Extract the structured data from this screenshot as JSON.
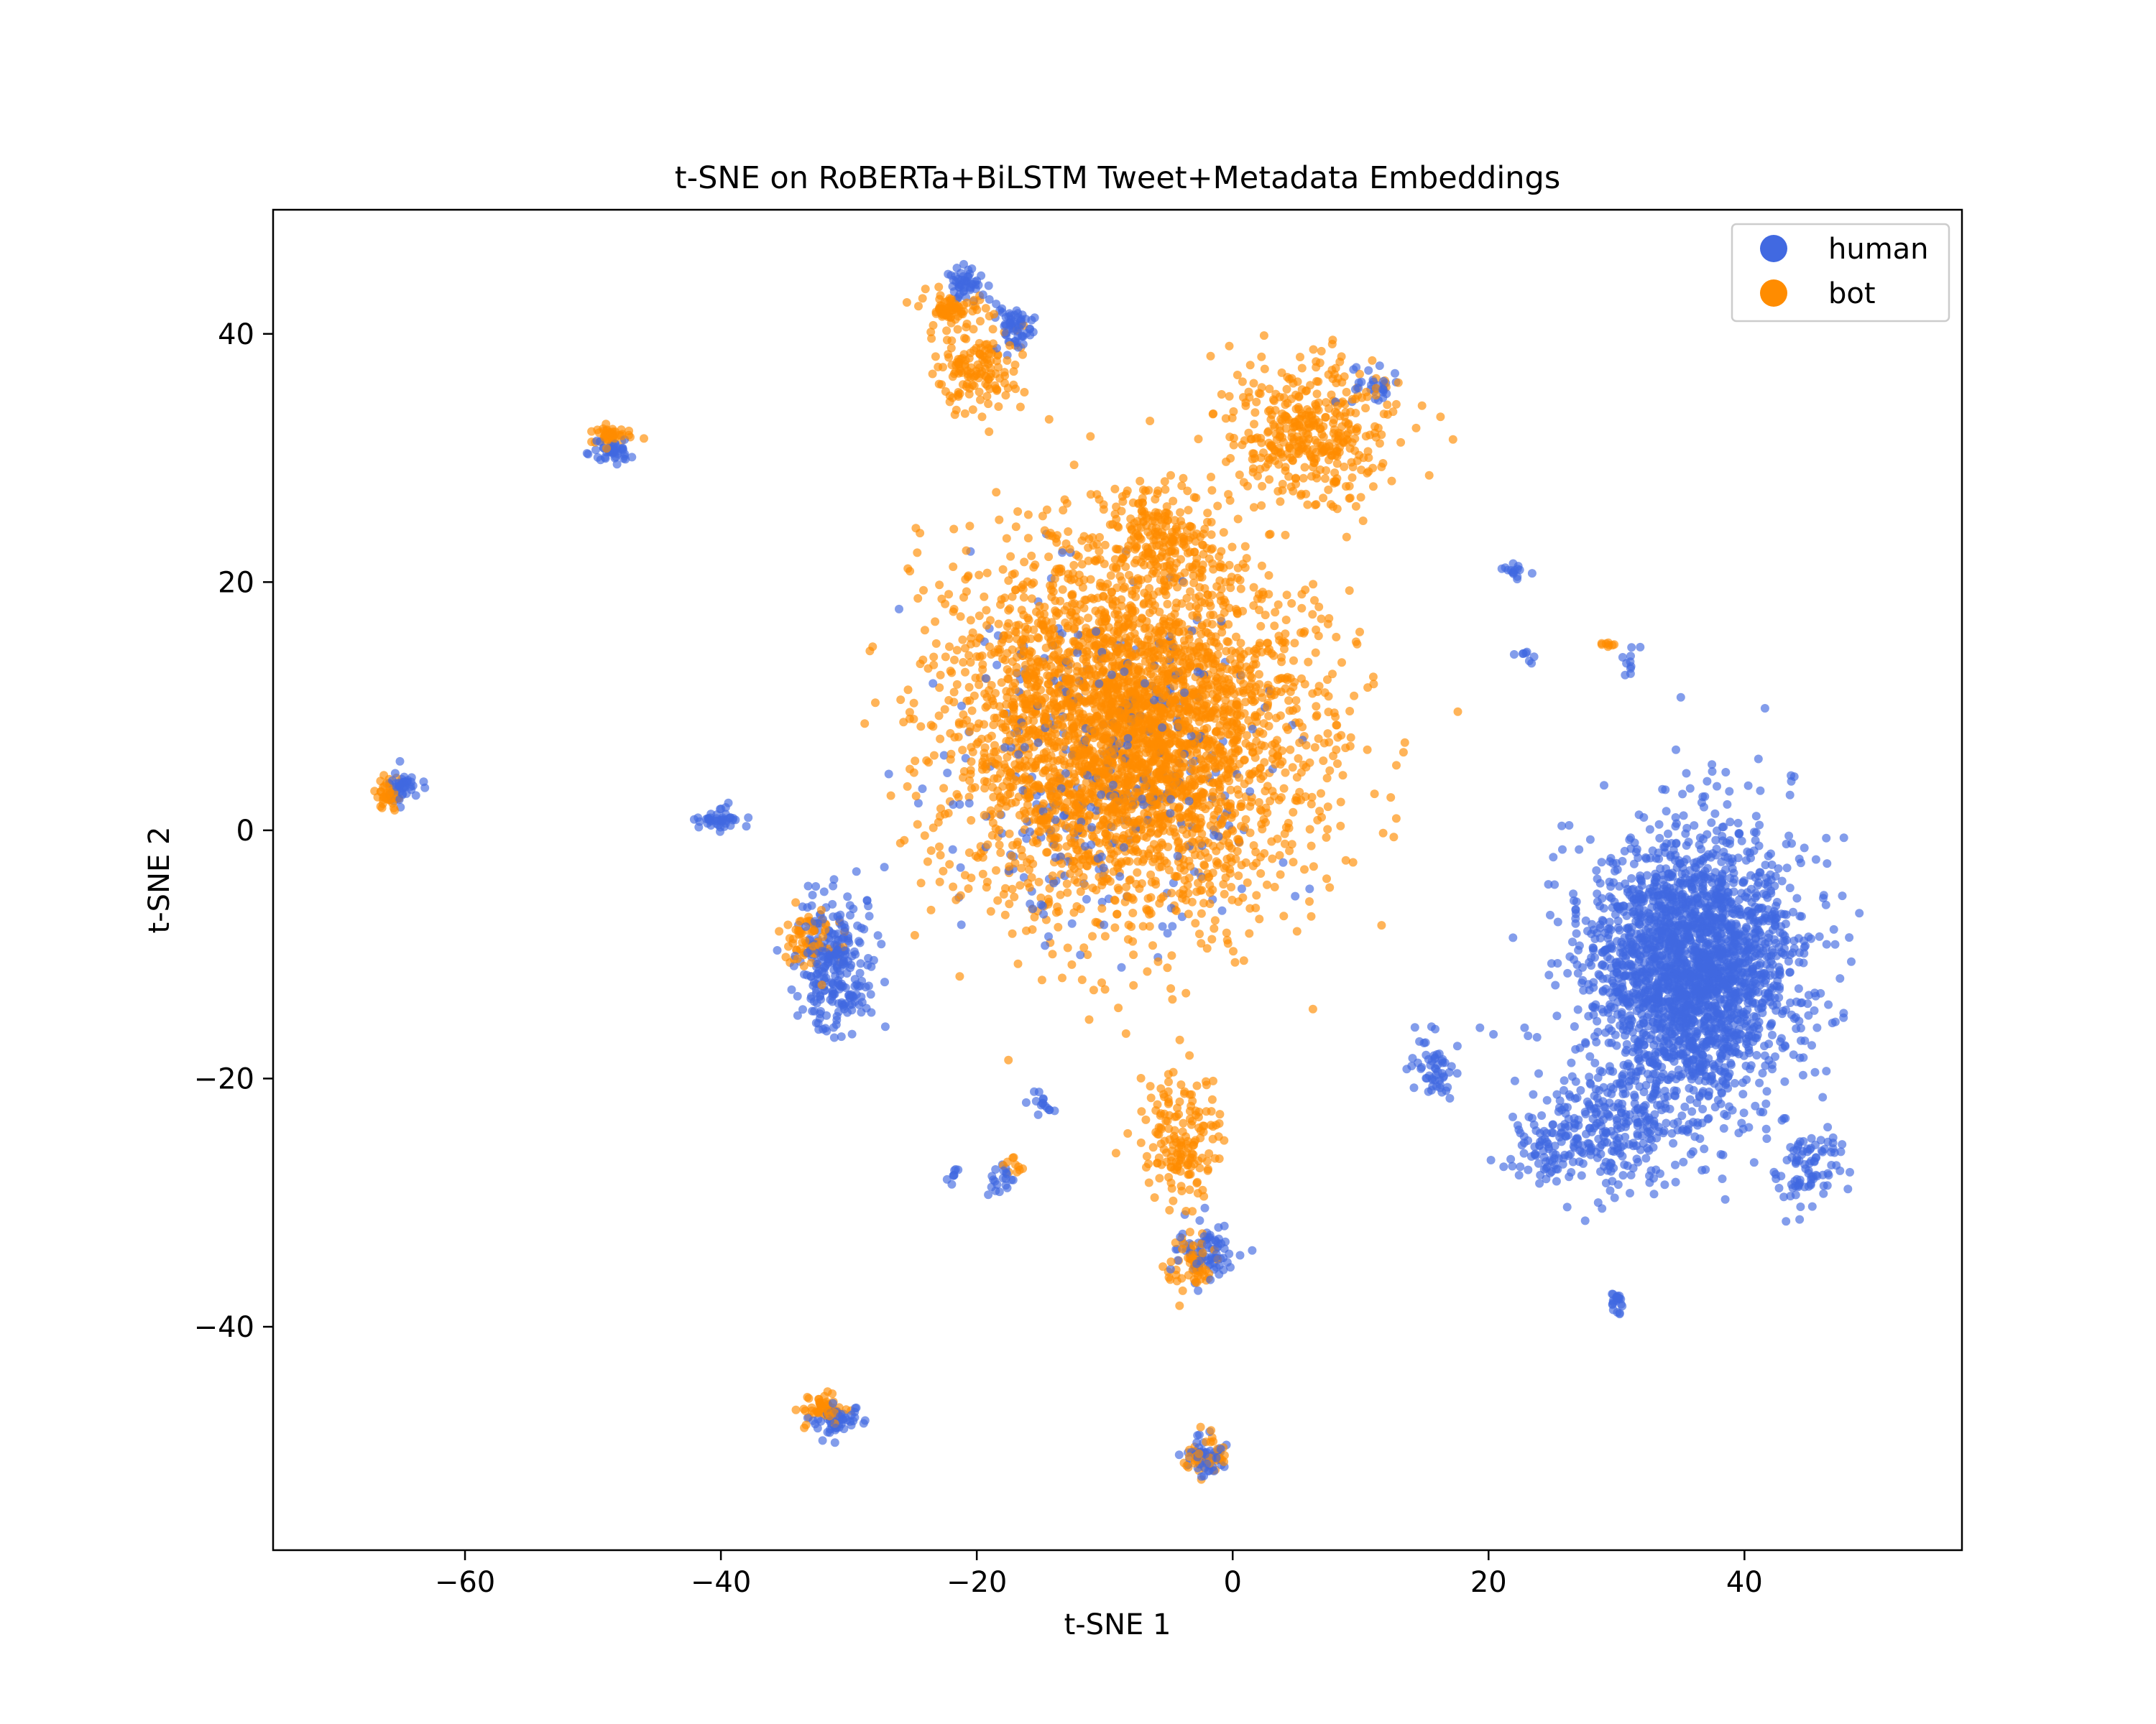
{
  "chart_data": {
    "type": "scatter",
    "title": "t-SNE on RoBERTa+BiLSTM Tweet+Metadata Embeddings",
    "xlabel": "t-SNE 1",
    "ylabel": "t-SNE 2",
    "xlim": [
      -75,
      57
    ],
    "ylim": [
      -58,
      50
    ],
    "xticks": [
      -60,
      -40,
      -20,
      0,
      20,
      40
    ],
    "yticks": [
      -40,
      -20,
      0,
      20,
      40
    ],
    "xtick_labels": [
      "−60",
      "−40",
      "−20",
      "0",
      "20",
      "40"
    ],
    "ytick_labels": [
      "−40",
      "−20",
      "0",
      "20",
      "40"
    ],
    "legend_position": "top-right",
    "grid": false,
    "series": [
      {
        "name": "human",
        "color": "#4169e1",
        "clusters": [
          {
            "center": [
              36,
              -11
            ],
            "spread": [
              6.5,
              9
            ],
            "count": 2400
          },
          {
            "center": [
              30,
              -24
            ],
            "spread": [
              5,
              3.5
            ],
            "count": 250
          },
          {
            "center": [
              45,
              -27
            ],
            "spread": [
              2.2,
              2.5
            ],
            "count": 90
          },
          {
            "center": [
              24,
              -26
            ],
            "spread": [
              2.5,
              2
            ],
            "count": 70
          },
          {
            "center": [
              -10,
              5
            ],
            "spread": [
              10,
              11
            ],
            "count": 320
          },
          {
            "center": [
              -31,
              -11
            ],
            "spread": [
              2.3,
              4.5
            ],
            "count": 260
          },
          {
            "center": [
              -21,
              44
            ],
            "spread": [
              1.3,
              1
            ],
            "count": 50
          },
          {
            "center": [
              -17,
              40.5
            ],
            "spread": [
              1.3,
              1.5
            ],
            "count": 60
          },
          {
            "center": [
              -65,
              3.5
            ],
            "spread": [
              1,
              1
            ],
            "count": 45
          },
          {
            "center": [
              -48.5,
              30.5
            ],
            "spread": [
              1.2,
              0.6
            ],
            "count": 45
          },
          {
            "center": [
              -40,
              1
            ],
            "spread": [
              1.5,
              0.6
            ],
            "count": 45
          },
          {
            "center": [
              -31,
              -47.5
            ],
            "spread": [
              1.5,
              1
            ],
            "count": 55
          },
          {
            "center": [
              -2,
              -50.5
            ],
            "spread": [
              1.2,
              1
            ],
            "count": 55
          },
          {
            "center": [
              -2,
              -34
            ],
            "spread": [
              2,
              2
            ],
            "count": 75
          },
          {
            "center": [
              16,
              -19
            ],
            "spread": [
              1.5,
              2
            ],
            "count": 55
          },
          {
            "center": [
              30,
              -38
            ],
            "spread": [
              0.5,
              0.6
            ],
            "count": 22
          },
          {
            "center": [
              22,
              21
            ],
            "spread": [
              1,
              0.5
            ],
            "count": 15
          },
          {
            "center": [
              11,
              36
            ],
            "spread": [
              2,
              1.5
            ],
            "count": 30
          },
          {
            "center": [
              -18,
              -28
            ],
            "spread": [
              1,
              1
            ],
            "count": 20
          },
          {
            "center": [
              -15,
              -22
            ],
            "spread": [
              1,
              0.8
            ],
            "count": 15
          },
          {
            "center": [
              31,
              14
            ],
            "spread": [
              0.6,
              1.2
            ],
            "count": 10
          },
          {
            "center": [
              23,
              14
            ],
            "spread": [
              0.8,
              0.5
            ],
            "count": 8
          },
          {
            "center": [
              -22,
              -27.5
            ],
            "spread": [
              0.6,
              0.6
            ],
            "count": 8
          }
        ]
      },
      {
        "name": "bot",
        "color": "#ff8c00",
        "clusters": [
          {
            "center": [
              -8,
              8
            ],
            "spread": [
              11,
              12
            ],
            "count": 3600
          },
          {
            "center": [
              6,
              32
            ],
            "spread": [
              5,
              4.5
            ],
            "count": 400
          },
          {
            "center": [
              -6,
              24
            ],
            "spread": [
              3,
              3
            ],
            "count": 150
          },
          {
            "center": [
              -4,
              -25
            ],
            "spread": [
              2.5,
              4
            ],
            "count": 170
          },
          {
            "center": [
              -3,
              -35
            ],
            "spread": [
              1.5,
              1.5
            ],
            "count": 60
          },
          {
            "center": [
              -22,
              42
            ],
            "spread": [
              2,
              1.2
            ],
            "count": 80
          },
          {
            "center": [
              -20,
              37
            ],
            "spread": [
              2.5,
              2.5
            ],
            "count": 140
          },
          {
            "center": [
              -33,
              -9
            ],
            "spread": [
              2,
              2
            ],
            "count": 70
          },
          {
            "center": [
              -66,
              3
            ],
            "spread": [
              0.8,
              1
            ],
            "count": 40
          },
          {
            "center": [
              -48.5,
              31.8
            ],
            "spread": [
              1.2,
              0.6
            ],
            "count": 45
          },
          {
            "center": [
              -32,
              -46.5
            ],
            "spread": [
              1.2,
              1
            ],
            "count": 50
          },
          {
            "center": [
              -2,
              -50.5
            ],
            "spread": [
              1.2,
              1
            ],
            "count": 50
          },
          {
            "center": [
              -17,
              -27
            ],
            "spread": [
              1,
              1
            ],
            "count": 10
          },
          {
            "center": [
              29.5,
              15
            ],
            "spread": [
              0.5,
              0.2
            ],
            "count": 8
          }
        ]
      }
    ]
  }
}
